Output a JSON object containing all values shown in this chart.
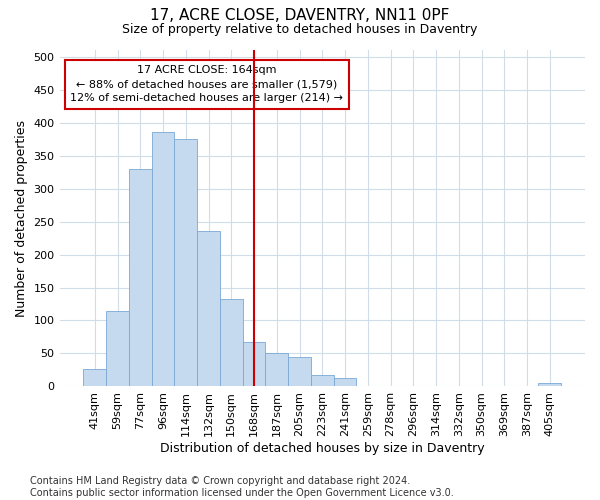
{
  "title": "17, ACRE CLOSE, DAVENTRY, NN11 0PF",
  "subtitle": "Size of property relative to detached houses in Daventry",
  "xlabel": "Distribution of detached houses by size in Daventry",
  "ylabel": "Number of detached properties",
  "categories": [
    "41sqm",
    "59sqm",
    "77sqm",
    "96sqm",
    "114sqm",
    "132sqm",
    "150sqm",
    "168sqm",
    "187sqm",
    "205sqm",
    "223sqm",
    "241sqm",
    "259sqm",
    "278sqm",
    "296sqm",
    "314sqm",
    "332sqm",
    "350sqm",
    "369sqm",
    "387sqm",
    "405sqm"
  ],
  "values": [
    27,
    115,
    330,
    385,
    375,
    236,
    133,
    68,
    50,
    45,
    18,
    13,
    0,
    0,
    0,
    0,
    0,
    0,
    0,
    0,
    6
  ],
  "bar_color": "#c5d9ef",
  "bar_edge_color": "#7ba7d4",
  "vline_x_idx": 7,
  "vline_color": "#cc0000",
  "annotation_text": "17 ACRE CLOSE: 164sqm\n← 88% of detached houses are smaller (1,579)\n12% of semi-detached houses are larger (214) →",
  "annotation_box_color": "#ffffff",
  "annotation_box_edge": "#cc0000",
  "ylim": [
    0,
    510
  ],
  "yticks": [
    0,
    50,
    100,
    150,
    200,
    250,
    300,
    350,
    400,
    450,
    500
  ],
  "footnote": "Contains HM Land Registry data © Crown copyright and database right 2024.\nContains public sector information licensed under the Open Government Licence v3.0.",
  "bg_color": "#ffffff",
  "plot_bg_color": "#ffffff",
  "grid_color": "#d0dce8",
  "title_fontsize": 11,
  "subtitle_fontsize": 9,
  "axis_label_fontsize": 9,
  "tick_fontsize": 8,
  "footnote_fontsize": 7
}
